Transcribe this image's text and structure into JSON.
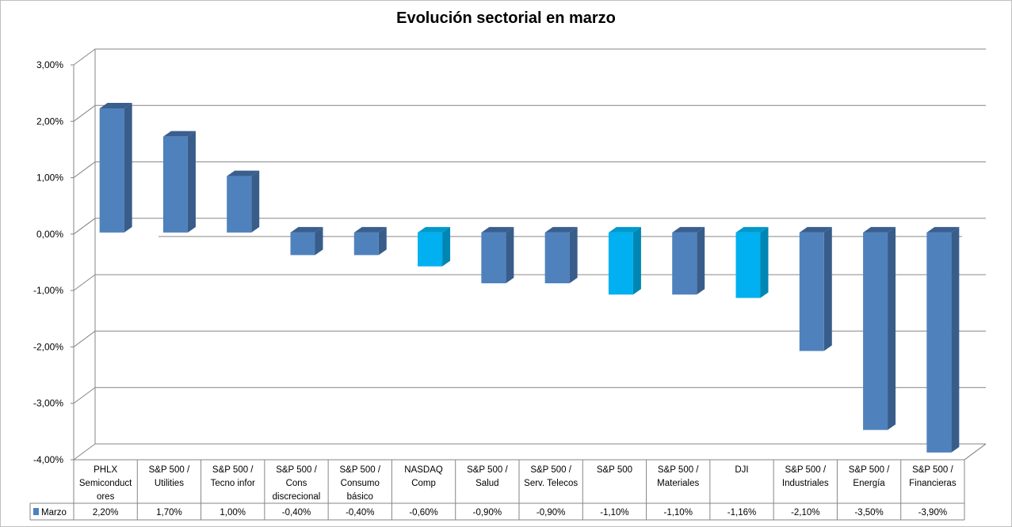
{
  "chart_data": {
    "type": "bar",
    "title": "Evolución sectorial en marzo",
    "xlabel": "",
    "ylabel": "",
    "ylim": [
      -4,
      3
    ],
    "y_ticks": [
      "3,00%",
      "2,00%",
      "1,00%",
      "0,00%",
      "-1,00%",
      "-2,00%",
      "-3,00%",
      "-4,00%"
    ],
    "categories": [
      [
        "PHLX",
        "Semiconduct",
        "ores"
      ],
      [
        "S&P 500 /",
        "Utilities"
      ],
      [
        "S&P 500 /",
        "Tecno infor"
      ],
      [
        "S&P 500 /",
        "Cons",
        "discrecional"
      ],
      [
        "S&P 500 /",
        "Consumo",
        "básico"
      ],
      [
        "NASDAQ",
        "Comp"
      ],
      [
        "S&P 500 /",
        "Salud"
      ],
      [
        "S&P 500 /",
        "Serv. Telecos"
      ],
      [
        "S&P 500"
      ],
      [
        "S&P 500 /",
        "Materiales"
      ],
      [
        "DJI"
      ],
      [
        "S&P 500 /",
        "Industriales"
      ],
      [
        "S&P 500 /",
        "Energía"
      ],
      [
        "S&P 500 /",
        "Financieras"
      ]
    ],
    "series": [
      {
        "name": "Marzo",
        "values": [
          2.2,
          1.7,
          1.0,
          -0.4,
          -0.4,
          -0.6,
          -0.9,
          -0.9,
          -1.1,
          -1.1,
          -1.16,
          -2.1,
          -3.5,
          -3.9
        ],
        "labels": [
          "2,20%",
          "1,70%",
          "1,00%",
          "-0,40%",
          "-0,40%",
          "-0,60%",
          "-0,90%",
          "-0,90%",
          "-1,10%",
          "-1,10%",
          "-1,16%",
          "-2,10%",
          "-3,50%",
          "-3,90%"
        ],
        "highlight": [
          false,
          false,
          false,
          false,
          false,
          true,
          false,
          false,
          true,
          false,
          true,
          false,
          false,
          false
        ]
      }
    ],
    "legend": "data-table-left",
    "grid": true,
    "colors": {
      "bar_front": "#4f81bd",
      "bar_side": "#385d8a",
      "bar_top": "#3a5f8f",
      "highlight_front": "#00b0f0",
      "highlight_side": "#0086b3",
      "highlight_top": "#0099cc",
      "grid": "#868686"
    }
  }
}
